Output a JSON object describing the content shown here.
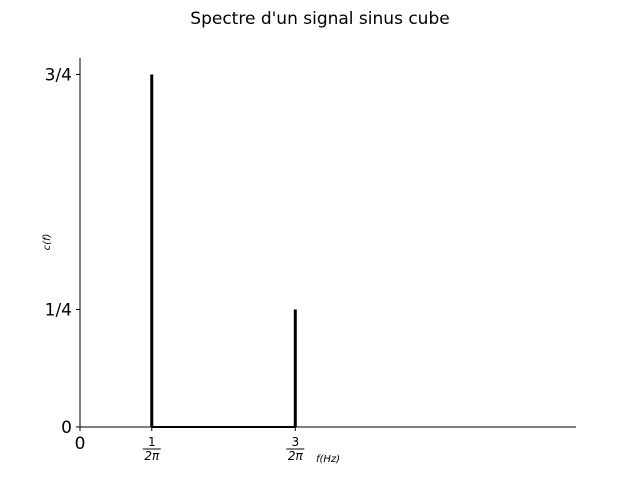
{
  "chart_data": {
    "type": "bar",
    "title": "Spectre d'un signal sinus cube",
    "xlabel": "f(Hz)",
    "ylabel": "c(f)",
    "x_ticks": [
      {
        "value": 0,
        "label": "0"
      },
      {
        "value": 0.159155,
        "numerator": "1",
        "denominator": "2π"
      },
      {
        "value": 0.477465,
        "numerator": "3",
        "denominator": "2π"
      }
    ],
    "y_ticks": [
      {
        "value": 0,
        "label": "0"
      },
      {
        "value": 0.25,
        "label": "1/4"
      },
      {
        "value": 0.75,
        "label": "3/4"
      }
    ],
    "series": [
      {
        "stems": [
          {
            "x": 0.159155,
            "y": 0.75
          },
          {
            "x": 0.477465,
            "y": 0.25
          }
        ],
        "baseline": {
          "from_x": 0.159155,
          "to_x": 0.477465,
          "y": 0
        }
      }
    ],
    "xlim": [
      0,
      1.1
    ],
    "ylim": [
      0,
      0.785
    ],
    "grid": false,
    "colors": {
      "stem": "#000000",
      "axis": "#000000"
    }
  }
}
